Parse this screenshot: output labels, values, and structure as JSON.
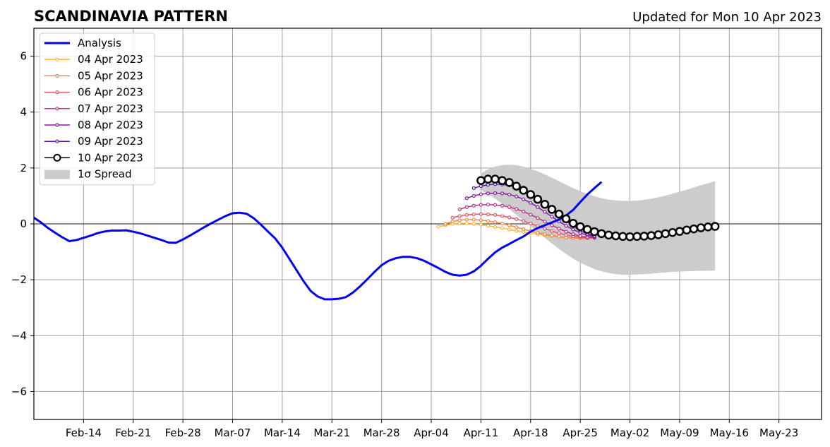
{
  "title": "SCANDINAVIA PATTERN",
  "subtitle": "Updated for Mon 10 Apr 2023",
  "colors": {
    "analysis": "#0000ee",
    "spread": "#cccccc",
    "grid": "#a0a0a0",
    "zero_line": "#444444"
  },
  "chart_data": {
    "type": "line",
    "title": "SCANDINAVIA PATTERN",
    "subtitle": "Updated for Mon 10 Apr 2023",
    "xlim": [
      "2023-02-07",
      "2023-05-29"
    ],
    "ylim": [
      -7,
      7
    ],
    "x_ticks": [
      "2023-02-14",
      "2023-02-21",
      "2023-02-28",
      "2023-03-07",
      "2023-03-14",
      "2023-03-21",
      "2023-03-28",
      "2023-04-04",
      "2023-04-11",
      "2023-04-18",
      "2023-04-25",
      "2023-05-02",
      "2023-05-09",
      "2023-05-16",
      "2023-05-23"
    ],
    "x_tick_labels": [
      "Feb-14",
      "Feb-21",
      "Feb-28",
      "Mar-07",
      "Mar-14",
      "Mar-21",
      "Mar-28",
      "Apr-04",
      "Apr-11",
      "Apr-18",
      "Apr-25",
      "May-02",
      "May-09",
      "May-16",
      "May-23"
    ],
    "y_ticks": [
      -6,
      -4,
      -2,
      0,
      2,
      4,
      6
    ],
    "y_tick_labels": [
      "−6",
      "−4",
      "−2",
      "0",
      "2",
      "4",
      "6"
    ],
    "grid": true,
    "legend_position": "top-left",
    "spread_label": "1σ Spread",
    "analysis": {
      "name": "Analysis",
      "start": "2023-02-07",
      "values": [
        0.22,
        0.05,
        -0.15,
        -0.32,
        -0.48,
        -0.62,
        -0.58,
        -0.5,
        -0.42,
        -0.33,
        -0.27,
        -0.24,
        -0.24,
        -0.23,
        -0.28,
        -0.34,
        -0.42,
        -0.5,
        -0.58,
        -0.67,
        -0.68,
        -0.56,
        -0.42,
        -0.27,
        -0.12,
        0.02,
        0.15,
        0.28,
        0.38,
        0.4,
        0.36,
        0.2,
        -0.03,
        -0.28,
        -0.52,
        -0.85,
        -1.25,
        -1.65,
        -2.05,
        -2.4,
        -2.6,
        -2.7,
        -2.7,
        -2.68,
        -2.62,
        -2.45,
        -2.23,
        -1.98,
        -1.72,
        -1.48,
        -1.32,
        -1.23,
        -1.18,
        -1.18,
        -1.23,
        -1.32,
        -1.45,
        -1.58,
        -1.72,
        -1.82,
        -1.85,
        -1.82,
        -1.7,
        -1.5,
        -1.25,
        -1.02,
        -0.85,
        -0.72,
        -0.58,
        -0.45,
        -0.28,
        -0.15,
        -0.05,
        0.05,
        0.15,
        0.3,
        0.5,
        0.78,
        1.05,
        1.28,
        1.5
      ]
    },
    "forecasts": [
      {
        "name": "04 Apr 2023",
        "color": "#f8b53a",
        "start": "2023-04-05",
        "values": [
          -0.1,
          -0.05,
          0.0,
          0.02,
          0.02,
          0.0,
          -0.03,
          -0.07,
          -0.11,
          -0.15,
          -0.2,
          -0.25,
          -0.29,
          -0.33,
          -0.37,
          -0.41,
          -0.44,
          -0.47,
          -0.49,
          -0.5,
          -0.5,
          -0.5,
          -0.49
        ]
      },
      {
        "name": "05 Apr 2023",
        "color": "#ee8845",
        "start": "2023-04-06",
        "values": [
          0.0,
          0.08,
          0.13,
          0.15,
          0.15,
          0.13,
          0.1,
          0.06,
          0.01,
          -0.05,
          -0.12,
          -0.19,
          -0.26,
          -0.32,
          -0.37,
          -0.42,
          -0.46,
          -0.49,
          -0.51,
          -0.52,
          -0.52,
          -0.51
        ]
      },
      {
        "name": "06 Apr 2023",
        "color": "#dd5566",
        "start": "2023-04-07",
        "values": [
          0.22,
          0.28,
          0.32,
          0.34,
          0.35,
          0.34,
          0.32,
          0.28,
          0.23,
          0.17,
          0.1,
          0.01,
          -0.08,
          -0.17,
          -0.26,
          -0.33,
          -0.4,
          -0.45,
          -0.48,
          -0.5,
          -0.5
        ]
      },
      {
        "name": "07 Apr 2023",
        "color": "#bb3388",
        "start": "2023-04-08",
        "values": [
          0.52,
          0.6,
          0.65,
          0.68,
          0.69,
          0.68,
          0.65,
          0.6,
          0.53,
          0.44,
          0.33,
          0.21,
          0.08,
          -0.05,
          -0.17,
          -0.28,
          -0.37,
          -0.44,
          -0.48,
          -0.5
        ]
      },
      {
        "name": "08 Apr 2023",
        "color": "#8a1aa6",
        "start": "2023-04-09",
        "values": [
          0.92,
          1.0,
          1.06,
          1.09,
          1.1,
          1.09,
          1.05,
          0.98,
          0.88,
          0.75,
          0.6,
          0.43,
          0.26,
          0.09,
          -0.07,
          -0.2,
          -0.32,
          -0.41,
          -0.47
        ]
      },
      {
        "name": "09 Apr 2023",
        "color": "#5a14a0",
        "start": "2023-04-10",
        "values": [
          1.28,
          1.35,
          1.4,
          1.42,
          1.41,
          1.38,
          1.32,
          1.22,
          1.09,
          0.92,
          0.72,
          0.51,
          0.3,
          0.1,
          -0.08,
          -0.24,
          -0.36,
          -0.44
        ]
      }
    ],
    "current": {
      "name": "10 Apr 2023",
      "start": "2023-04-11",
      "values": [
        1.55,
        1.6,
        1.6,
        1.55,
        1.48,
        1.35,
        1.2,
        1.05,
        0.88,
        0.7,
        0.52,
        0.35,
        0.18,
        0.02,
        -0.1,
        -0.2,
        -0.28,
        -0.35,
        -0.4,
        -0.43,
        -0.45,
        -0.46,
        -0.45,
        -0.44,
        -0.42,
        -0.39,
        -0.35,
        -0.31,
        -0.27,
        -0.22,
        -0.18,
        -0.14,
        -0.11,
        -0.09
      ]
    },
    "spread": {
      "start": "2023-04-11",
      "upper": [
        1.8,
        1.95,
        2.05,
        2.1,
        2.12,
        2.1,
        2.05,
        1.97,
        1.88,
        1.77,
        1.65,
        1.53,
        1.4,
        1.28,
        1.17,
        1.07,
        0.99,
        0.92,
        0.87,
        0.84,
        0.82,
        0.82,
        0.83,
        0.86,
        0.9,
        0.95,
        1.01,
        1.08,
        1.15,
        1.22,
        1.3,
        1.38,
        1.45,
        1.53
      ],
      "lower": [
        1.2,
        1.05,
        0.9,
        0.72,
        0.53,
        0.32,
        0.12,
        -0.08,
        -0.29,
        -0.5,
        -0.7,
        -0.9,
        -1.08,
        -1.24,
        -1.39,
        -1.51,
        -1.62,
        -1.7,
        -1.76,
        -1.8,
        -1.82,
        -1.82,
        -1.81,
        -1.8,
        -1.78,
        -1.76,
        -1.74,
        -1.72,
        -1.71,
        -1.7,
        -1.69,
        -1.68,
        -1.68,
        -1.67
      ]
    }
  }
}
